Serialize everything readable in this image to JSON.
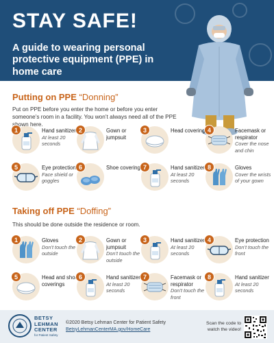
{
  "header": {
    "title": "STAY SAFE!",
    "subtitle": "A guide to wearing personal protective equipment (PPE) in home care"
  },
  "donning": {
    "title": "Putting on PPE",
    "title_quote": "“Donning”",
    "intro": "Put on PPE before you enter the home or before you enter someone’s room in a facility. You won’t always need all of the PPE shown here.",
    "items": [
      {
        "num": "1",
        "name": "Hand sanitizer",
        "note": "At least 20 seconds",
        "icon": "sanitizer-icon"
      },
      {
        "num": "2",
        "name": "Gown or jumpsuit",
        "note": "",
        "icon": "gown-icon"
      },
      {
        "num": "3",
        "name": "Head covering",
        "note": "",
        "icon": "cap-icon"
      },
      {
        "num": "4",
        "name": "Facemask or respirator",
        "note": "Cover the nose and chin",
        "icon": "mask-icon"
      },
      {
        "num": "5",
        "name": "Eye protection",
        "note": "Face shield or goggles",
        "icon": "goggles-icon"
      },
      {
        "num": "6",
        "name": "Shoe coverings",
        "note": "",
        "icon": "shoe-cover-icon"
      },
      {
        "num": "7",
        "name": "Hand sanitizer",
        "note": "At least 20 seconds",
        "icon": "sanitizer-icon"
      },
      {
        "num": "8",
        "name": "Gloves",
        "note": "Cover the wrists of your gown",
        "icon": "gloves-icon"
      }
    ]
  },
  "doffing": {
    "title": "Taking off PPE",
    "title_quote": "“Doffing”",
    "intro": "This should be done outside the residence or room.",
    "items": [
      {
        "num": "1",
        "name": "Gloves",
        "note": "Don’t touch the outside",
        "icon": "gloves-icon"
      },
      {
        "num": "2",
        "name": "Gown or jumpsuit",
        "note": "Don’t touch the outside",
        "icon": "gown-icon"
      },
      {
        "num": "3",
        "name": "Hand sanitizer",
        "note": "At least 20 seconds",
        "icon": "sanitizer-icon"
      },
      {
        "num": "4",
        "name": "Eye protection",
        "note": "Don’t touch the front",
        "icon": "goggles-icon"
      },
      {
        "num": "5",
        "name": "Head and shoe coverings",
        "note": "",
        "icon": "cap-icon"
      },
      {
        "num": "6",
        "name": "Hand sanitizer",
        "note": "At least 20 seconds",
        "icon": "sanitizer-icon"
      },
      {
        "num": "7",
        "name": "Facemask or respirator",
        "note": "Don’t touch the front",
        "icon": "mask-icon"
      },
      {
        "num": "8",
        "name": "Hand sanitizer",
        "note": "At least 20 seconds",
        "icon": "sanitizer-icon"
      }
    ]
  },
  "footer": {
    "logo_line1": "BETSY",
    "logo_line2": "LEHMAN",
    "logo_line3": "CENTER",
    "logo_sub": "for Patient Safety",
    "copyright": "©2020 Betsy Lehman Center for Patient Safety",
    "url": "BetsyLehmanCenterMA.gov/HomeCare",
    "scan_text": "Scan the code to watch the video!"
  },
  "colors": {
    "header_bg": "#1f4e79",
    "accent": "#c8641a",
    "icon_bg": "#f3e7d6",
    "footer_bg": "#e9eef3"
  }
}
